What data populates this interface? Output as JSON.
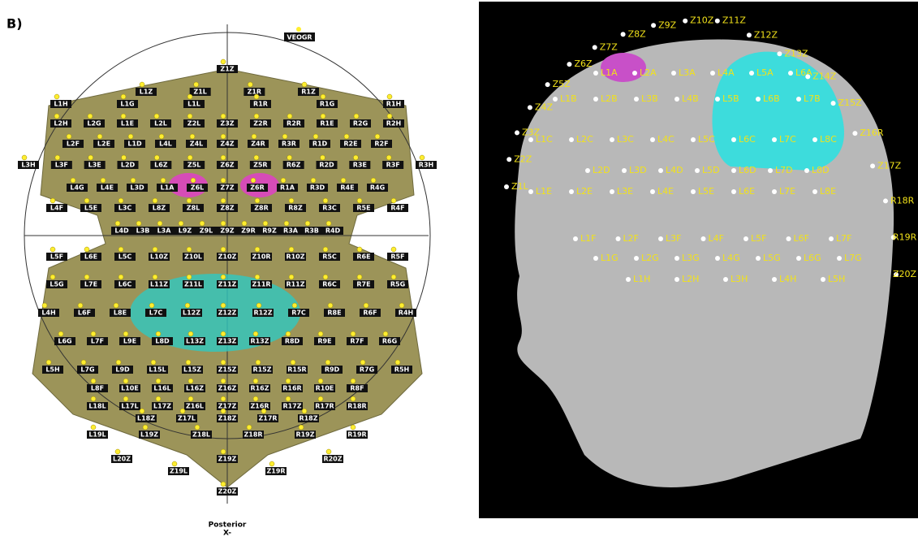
{
  "panel_label": "B)",
  "left_map": {
    "reference_label": "VEOGR",
    "orientation_label": "Posterior",
    "axis_label": "X-",
    "rows": [
      [
        "Z1Z"
      ],
      [
        "L1Z",
        "Z1L",
        "Z1R",
        "R1Z"
      ],
      [
        "L1H",
        "L1G",
        "L1L",
        "R1R",
        "R1G",
        "R1H"
      ],
      [
        "L2H",
        "L2G",
        "L1E",
        "L2L",
        "Z2L",
        "Z3Z",
        "Z2R",
        "R2R",
        "R1E",
        "R2G",
        "R2H"
      ],
      [
        "L2F",
        "L2E",
        "L1D",
        "L4L",
        "Z4L",
        "Z4Z",
        "Z4R",
        "R3R",
        "R1D",
        "R2E",
        "R2F"
      ],
      [
        "L3H",
        "L3F",
        "L3E",
        "L2D",
        "L6Z",
        "Z5L",
        "Z6Z",
        "Z5R",
        "R6Z",
        "R2D",
        "R3E",
        "R3F",
        "R3H"
      ],
      [
        "L4G",
        "L4E",
        "L3D",
        "L1A",
        "Z6L",
        "Z7Z",
        "Z6R",
        "R1A",
        "R3D",
        "R4E",
        "R4G"
      ],
      [
        "L4F",
        "L5E",
        "L3C",
        "L8Z",
        "Z8L",
        "Z8Z",
        "Z8R",
        "R8Z",
        "R3C",
        "R5E",
        "R4F"
      ],
      [
        "L4D",
        "L3B",
        "L3A",
        "L9Z",
        "Z9L",
        "Z9Z",
        "Z9R",
        "R9Z",
        "R3A",
        "R3B",
        "R4D"
      ],
      [
        "L5F",
        "L6E",
        "L5C",
        "L10Z",
        "Z10L",
        "Z10Z",
        "Z10R",
        "R10Z",
        "R5C",
        "R6E",
        "R5F"
      ],
      [
        "L5G",
        "L7E",
        "L6C",
        "L11Z",
        "Z11L",
        "Z11Z",
        "Z11R",
        "R11Z",
        "R6C",
        "R7E",
        "R5G"
      ],
      [
        "L4H",
        "L6F",
        "L8E",
        "L7C",
        "L12Z",
        "Z12Z",
        "R12Z",
        "R7C",
        "R8E",
        "R6F",
        "R4H"
      ],
      [
        "L6G",
        "L7F",
        "L9E",
        "L8D",
        "L13Z",
        "Z13Z",
        "R13Z",
        "R8D",
        "R9E",
        "R7F",
        "R6G"
      ],
      [
        "L5H",
        "L7G",
        "L9D",
        "L15L",
        "L15Z",
        "Z15Z",
        "R15Z",
        "R15R",
        "R9D",
        "R7G",
        "R5H"
      ],
      [
        "L8F",
        "L10E",
        "L16L",
        "L16Z",
        "Z16Z",
        "R16Z",
        "R16R",
        "R10E",
        "R8F"
      ],
      [
        "L18L",
        "L17L",
        "L17Z",
        "Z16L",
        "Z17Z",
        "Z16R",
        "R17Z",
        "R17R",
        "R18R"
      ],
      [
        "L18Z",
        "Z17L",
        "Z18Z",
        "Z17R",
        "R18Z"
      ],
      [
        "L19L",
        "L19Z",
        "Z18L",
        "Z18R",
        "R19Z",
        "R19R"
      ],
      [
        "L20Z",
        "Z19Z",
        "R20Z"
      ],
      [
        "Z19L",
        "Z19R"
      ],
      [
        "Z20Z"
      ]
    ]
  },
  "right_view": {
    "rows": [
      [
        "L1A",
        "L2A",
        "L3A",
        "L4A",
        "L5A",
        "L6A"
      ],
      [
        "L1B",
        "L2B",
        "L3B",
        "L4B",
        "L5B",
        "L6B",
        "L7B"
      ],
      [
        "L1C",
        "L2C",
        "L3C",
        "L4C",
        "L5C",
        "L6C",
        "L7C",
        "L8C"
      ],
      [
        "L2D",
        "L3D",
        "L4D",
        "L5D",
        "L6D",
        "L7D",
        "L8D"
      ],
      [
        "L1E",
        "L2E",
        "L3E",
        "L4E",
        "L5E",
        "L6E",
        "L7E",
        "L8E"
      ],
      [
        "L1F",
        "L2F",
        "L3F",
        "L4F",
        "L5F",
        "L6F",
        "L7F"
      ],
      [
        "L1G",
        "L2G",
        "L3G",
        "L4G",
        "L5G",
        "L6G",
        "L7G"
      ],
      [
        "L1H",
        "L2H",
        "L3H",
        "L4H",
        "L5H"
      ]
    ],
    "arc": [
      "Z1L",
      "Z2Z",
      "Z3Z",
      "Z4Z",
      "Z5Z",
      "Z6Z",
      "Z7Z",
      "Z8Z",
      "Z9Z",
      "Z10Z",
      "Z11Z",
      "Z12Z",
      "Z13Z",
      "Z14Z",
      "Z15Z",
      "Z16R",
      "Z17Z",
      "R18R",
      "R19R",
      "Z20Z"
    ]
  }
}
